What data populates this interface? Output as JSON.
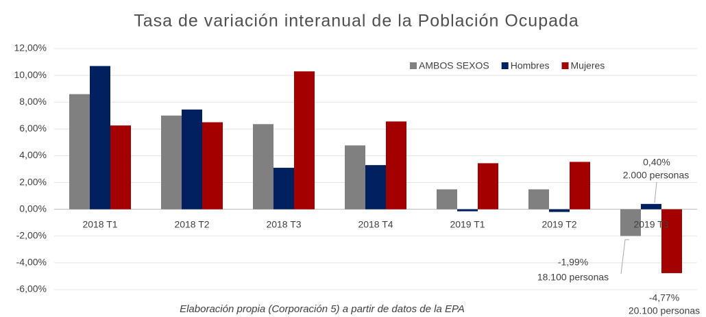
{
  "chart_data": {
    "type": "bar",
    "title": "Tasa de variación interanual de la Población Ocupada",
    "source": "Elaboración propia (Corporación 5) a partir de datos de la EPA",
    "categories": [
      "2018 T1",
      "2018 T2",
      "2018 T3",
      "2018 T4",
      "2019 T1",
      "2019 T2",
      "2019 T3"
    ],
    "series": [
      {
        "name": "AMBOS SEXOS",
        "color": "#808080",
        "values": [
          8.6,
          7.0,
          6.36,
          4.77,
          1.49,
          1.49,
          -1.99
        ],
        "value_labels": [
          null,
          null,
          null,
          null,
          null,
          null,
          "-1,99%"
        ]
      },
      {
        "name": "Hombres",
        "color": "#002060",
        "values": [
          10.7,
          7.45,
          3.1,
          3.3,
          -0.15,
          -0.2,
          0.4
        ],
        "value_labels": [
          null,
          null,
          null,
          null,
          null,
          null,
          "0,40%"
        ]
      },
      {
        "name": "Mujeres",
        "color": "#a50000",
        "values": [
          6.26,
          6.5,
          10.3,
          6.56,
          3.44,
          3.54,
          -4.77
        ],
        "value_labels": [
          null,
          null,
          null,
          null,
          null,
          null,
          "-4,77%"
        ]
      }
    ],
    "annotations": [
      "2.000 personas",
      "18.100 personas",
      "20.100 personas"
    ],
    "ylim": [
      -6,
      12
    ],
    "yticks": [
      {
        "value": -6,
        "label": "-6,00%"
      },
      {
        "value": -4,
        "label": "-4,00%"
      },
      {
        "value": -2,
        "label": "-2,00%"
      },
      {
        "value": 0,
        "label": "0,00%"
      },
      {
        "value": 2,
        "label": "2,00%"
      },
      {
        "value": 4,
        "label": "4,00%"
      },
      {
        "value": 6,
        "label": "6,00%"
      },
      {
        "value": 8,
        "label": "8,00%"
      },
      {
        "value": 10,
        "label": "10,00%"
      },
      {
        "value": 12,
        "label": "12,00%"
      }
    ],
    "grid": true,
    "legend": "top-right"
  }
}
